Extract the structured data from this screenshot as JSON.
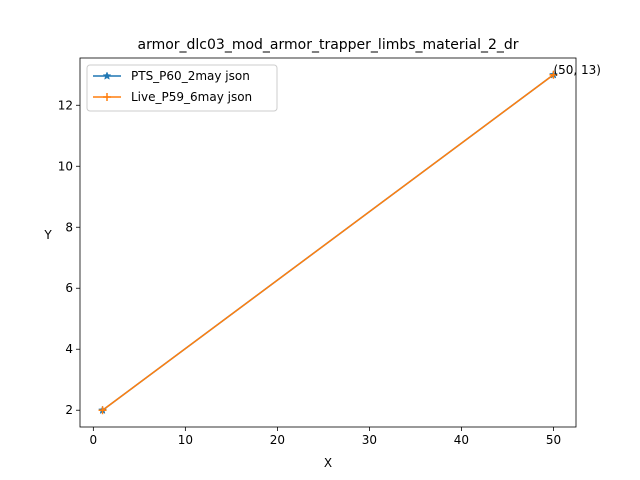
{
  "chart_data": {
    "type": "line",
    "title": "armor_dlc03_mod_armor_trapper_limbs_material_2_dr",
    "xlabel": "X",
    "ylabel": "Y",
    "xlim": [
      -1.45,
      52.45
    ],
    "ylim": [
      1.45,
      13.55
    ],
    "xticks": [
      0,
      10,
      20,
      30,
      40,
      50
    ],
    "yticks": [
      2,
      4,
      6,
      8,
      10,
      12
    ],
    "grid": false,
    "legend_position": "upper-left",
    "series": [
      {
        "name": "PTS_P60_2may json",
        "x": [
          1,
          50
        ],
        "y": [
          2,
          13
        ],
        "color": "#1f77b4",
        "marker": "star"
      },
      {
        "name": "Live_P59_6may json",
        "x": [
          1,
          50
        ],
        "y": [
          2,
          13
        ],
        "color": "#ff7f0e",
        "marker": "plus"
      }
    ],
    "annotations": [
      {
        "text": "(50, 13)",
        "x": 50,
        "y": 13
      }
    ]
  }
}
